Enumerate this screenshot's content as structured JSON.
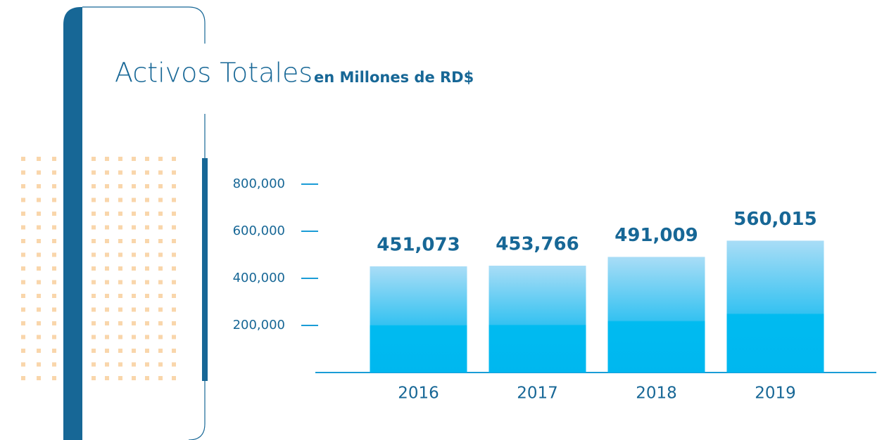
{
  "chart_data": {
    "type": "bar",
    "title": "Activos Totales",
    "subtitle": "en Millones de RD$",
    "categories": [
      "2016",
      "2017",
      "2018",
      "2019"
    ],
    "values": [
      451073,
      453766,
      491009,
      560015
    ],
    "value_labels": [
      "451,073",
      "453,766",
      "491,009",
      "560,015"
    ],
    "color": "#00b9f0",
    "ylim": [
      0,
      800000
    ],
    "yticks": [
      {
        "value": 200000,
        "label": "200,000"
      },
      {
        "value": 400000,
        "label": "400,000"
      },
      {
        "value": 600000,
        "label": "600,000"
      },
      {
        "value": 800000,
        "label": "800,000"
      }
    ]
  }
}
